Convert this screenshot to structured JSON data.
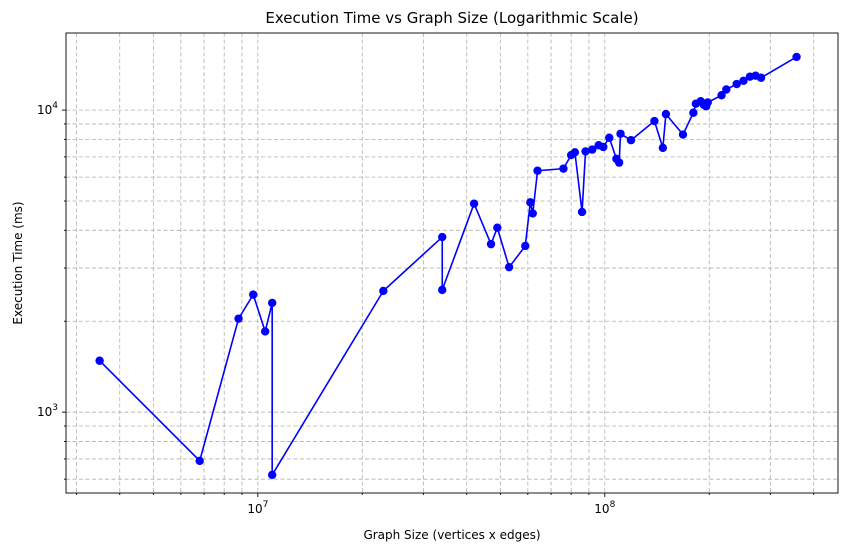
{
  "chart_data": {
    "type": "line",
    "title": "Execution Time vs Graph Size (Logarithmic Scale)",
    "xlabel": "Graph Size (vertices x edges)",
    "ylabel": "Execution Time (ms)",
    "x_scale": "log",
    "y_scale": "log",
    "xlim": [
      2800000,
      470000000
    ],
    "ylim": [
      540,
      18000
    ],
    "grid": true,
    "markers": true,
    "color": "#0000ff",
    "x_ticks": [
      {
        "value": 10000000,
        "base": "10",
        "exp": "7"
      },
      {
        "value": 100000000,
        "base": "10",
        "exp": "8"
      }
    ],
    "y_ticks": [
      {
        "value": 1000,
        "base": "10",
        "exp": "3"
      },
      {
        "value": 10000,
        "base": "10",
        "exp": "4"
      }
    ],
    "series": [
      {
        "points": [
          [
            3500000,
            1480
          ],
          [
            6800000,
            690
          ],
          [
            8800000,
            2040
          ],
          [
            9700000,
            2450
          ],
          [
            10500000,
            1850
          ],
          [
            11000000,
            2300
          ],
          [
            11000000,
            620
          ],
          [
            23000000,
            2520
          ],
          [
            34000000,
            3800
          ],
          [
            34000000,
            2540
          ],
          [
            42000000,
            4900
          ],
          [
            47000000,
            3600
          ],
          [
            49000000,
            4080
          ],
          [
            53000000,
            3020
          ],
          [
            59000000,
            3550
          ],
          [
            61000000,
            4950
          ],
          [
            62000000,
            4550
          ],
          [
            64000000,
            6300
          ],
          [
            76000000,
            6400
          ],
          [
            80000000,
            7100
          ],
          [
            82000000,
            7250
          ],
          [
            86000000,
            4600
          ],
          [
            88000000,
            7300
          ],
          [
            92000000,
            7400
          ],
          [
            96000000,
            7650
          ],
          [
            99000000,
            7550
          ],
          [
            103000000,
            8100
          ],
          [
            108000000,
            6900
          ],
          [
            110000000,
            6700
          ],
          [
            111000000,
            8350
          ],
          [
            119000000,
            7950
          ],
          [
            139000000,
            9200
          ],
          [
            147000000,
            7500
          ],
          [
            150000000,
            9700
          ],
          [
            168000000,
            8300
          ],
          [
            180000000,
            9800
          ],
          [
            183000000,
            10500
          ],
          [
            189000000,
            10700
          ],
          [
            193000000,
            10400
          ],
          [
            196000000,
            10300
          ],
          [
            198000000,
            10600
          ],
          [
            217000000,
            11200
          ],
          [
            224000000,
            11700
          ],
          [
            240000000,
            12200
          ],
          [
            251000000,
            12500
          ],
          [
            262000000,
            12900
          ],
          [
            272000000,
            13000
          ],
          [
            282000000,
            12800
          ],
          [
            357000000,
            15000
          ]
        ]
      }
    ]
  }
}
